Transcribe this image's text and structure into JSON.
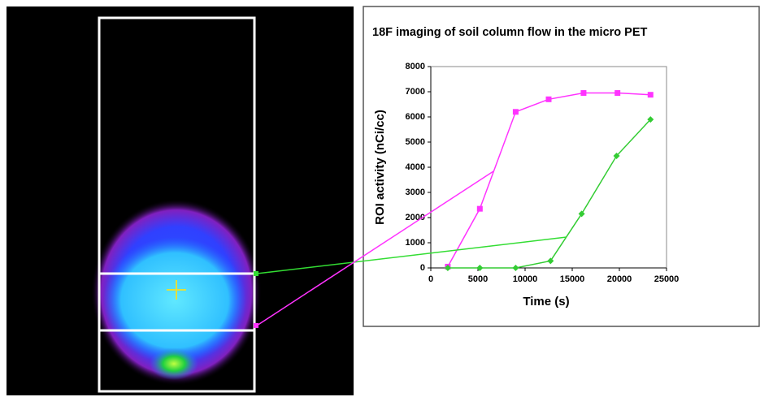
{
  "chart_data": {
    "type": "line",
    "title": "18F imaging of soil column flow in the micro PET",
    "x_label": "Time (s)",
    "y_label": "ROI activity (nCi/cc)",
    "xlim": [
      0,
      25000
    ],
    "xticks": [
      0,
      5000,
      10000,
      15000,
      20000,
      25000
    ],
    "ylim": [
      0,
      8000
    ],
    "yticks": [
      0,
      1000,
      2000,
      3000,
      4000,
      5000,
      6000,
      7000,
      8000
    ],
    "series": [
      {
        "color": "#ff33ff",
        "marker": "square",
        "x": [
          1800,
          5200,
          9000,
          12500,
          16200,
          19800,
          23300
        ],
        "values": [
          50,
          2350,
          6200,
          6700,
          6950,
          6950,
          6880
        ]
      },
      {
        "color": "#33cc33",
        "marker": "diamond",
        "x": [
          1800,
          5200,
          9000,
          12700,
          16000,
          19700,
          23300
        ],
        "values": [
          0,
          0,
          0,
          280,
          2150,
          4450,
          5900
        ]
      }
    ]
  }
}
